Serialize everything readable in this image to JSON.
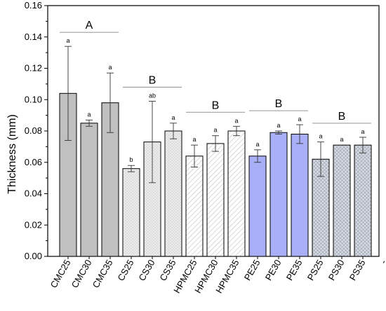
{
  "chart_data": {
    "type": "bar",
    "ylabel": "Thickness (mm)",
    "xlabel": "",
    "ylim": [
      0,
      0.16
    ],
    "yticks": [
      "0.00",
      "0.02",
      "0.04",
      "0.06",
      "0.08",
      "0.10",
      "0.12",
      "0.14",
      "0.16"
    ],
    "categories": [
      "CMC25",
      "CMC30",
      "CMC35",
      "CS25",
      "CS30",
      "CS35",
      "HPMC25",
      "HPMC30",
      "HPMC35",
      "PE25",
      "PE30",
      "PE35",
      "PS25",
      "PS30",
      "PS35"
    ],
    "values": [
      0.104,
      0.085,
      0.098,
      0.056,
      0.073,
      0.08,
      0.064,
      0.072,
      0.08,
      0.064,
      0.079,
      0.078,
      0.062,
      0.071,
      0.071
    ],
    "errors": [
      0.03,
      0.002,
      0.019,
      0.002,
      0.026,
      0.005,
      0.007,
      0.005,
      0.003,
      0.004,
      0.001,
      0.006,
      0.011,
      0.0,
      0.005
    ],
    "significance": [
      "a",
      "a",
      "a",
      "b",
      "ab",
      "a",
      "a",
      "a",
      "a",
      "a",
      "a",
      "a",
      "a",
      "a",
      "a"
    ],
    "groups": [
      {
        "label": "A",
        "fill": "#c0c0c0",
        "pattern": "solid",
        "bars": [
          0,
          1,
          2
        ]
      },
      {
        "label": "B",
        "fill": "#ececec",
        "pattern": "dots",
        "bars": [
          3,
          4,
          5
        ]
      },
      {
        "label": "B",
        "fill": "#ffffff",
        "pattern": "hatch",
        "bars": [
          6,
          7,
          8
        ]
      },
      {
        "label": "B",
        "fill": "#a8aff6",
        "pattern": "solid",
        "bars": [
          9,
          10,
          11
        ]
      },
      {
        "label": "B",
        "fill": "#d8dce2",
        "pattern": "crosshatch",
        "bars": [
          12,
          13,
          14
        ]
      }
    ],
    "trailing_tick_label": "-",
    "grid": false,
    "legend": "none"
  }
}
